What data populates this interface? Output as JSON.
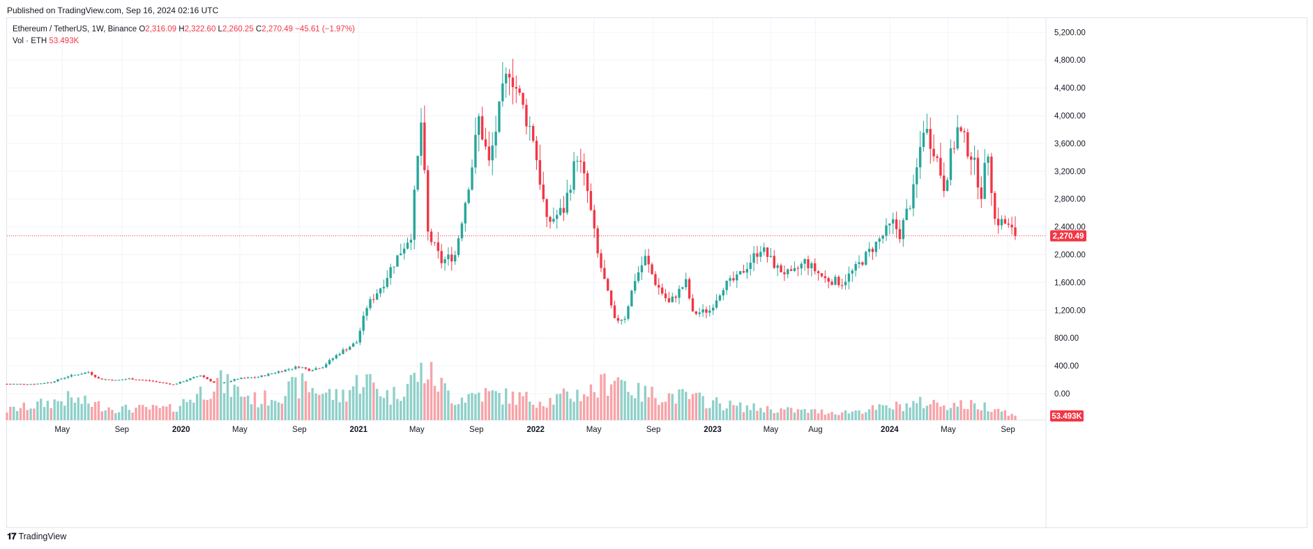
{
  "published": "Published on TradingView.com, Sep 16, 2024 02:16 UTC",
  "legend": {
    "symbol": "Ethereum / TetherUS, 1W, Binance",
    "o_label": "O",
    "o": "2,316.09",
    "h_label": "H",
    "h": "2,322.60",
    "l_label": "L",
    "l": "2,260.25",
    "c_label": "C",
    "c": "2,270.49",
    "change": "−45.61 (−1.97%)",
    "vol_label": "Vol · ETH",
    "vol": "53.493K"
  },
  "price_badge": "2,270.49",
  "volume_badge": "53.493K",
  "brand": "TradingView",
  "colors": {
    "up": "#26a69a",
    "down": "#f23645",
    "up_vol": "#8fd0c9",
    "down_vol": "#f7a3a8",
    "grid": "#f0f3fa",
    "last_line": "#f23645"
  },
  "chart_data": {
    "type": "candlestick",
    "symbol": "ETHUSDT",
    "interval": "1W",
    "y_ticks": [
      "5,200.00",
      "4,800.00",
      "4,400.00",
      "4,000.00",
      "3,600.00",
      "3,200.00",
      "2,800.00",
      "2,400.00",
      "2,000.00",
      "1,600.00",
      "1,200.00",
      "800.00",
      "400.00",
      "0.00"
    ],
    "y_tick_values": [
      5200,
      4800,
      4400,
      4000,
      3600,
      3200,
      2800,
      2400,
      2000,
      1600,
      1200,
      800,
      400,
      0
    ],
    "ylim": [
      0,
      5420
    ],
    "x_labels": [
      "May",
      "Sep",
      "2020",
      "May",
      "Sep",
      "2021",
      "May",
      "Sep",
      "2022",
      "May",
      "Sep",
      "2023",
      "May",
      "Aug",
      "2024",
      "May",
      "Sep"
    ],
    "x_label_dates": [
      "2019-05-01",
      "2019-09-01",
      "2020-01-01",
      "2020-05-01",
      "2020-09-01",
      "2021-01-01",
      "2021-05-01",
      "2021-09-01",
      "2022-01-01",
      "2022-05-01",
      "2022-09-01",
      "2023-01-01",
      "2023-05-01",
      "2023-08-01",
      "2024-01-01",
      "2024-05-01",
      "2024-09-01"
    ],
    "first_week": "2019-01-07",
    "last_week": "2024-09-16",
    "last_close": 2270.49,
    "close_anchors": [
      [
        "2019-01-07",
        140
      ],
      [
        "2019-03-04",
        137
      ],
      [
        "2019-04-08",
        165
      ],
      [
        "2019-05-13",
        250
      ],
      [
        "2019-06-24",
        310
      ],
      [
        "2019-07-15",
        215
      ],
      [
        "2019-08-19",
        190
      ],
      [
        "2019-09-16",
        215
      ],
      [
        "2019-10-28",
        185
      ],
      [
        "2019-12-16",
        130
      ],
      [
        "2020-02-10",
        265
      ],
      [
        "2020-03-16",
        130
      ],
      [
        "2020-04-27",
        215
      ],
      [
        "2020-06-08",
        240
      ],
      [
        "2020-07-27",
        330
      ],
      [
        "2020-08-31",
        390
      ],
      [
        "2020-09-21",
        340
      ],
      [
        "2020-10-19",
        390
      ],
      [
        "2020-11-23",
        590
      ],
      [
        "2020-12-28",
        740
      ],
      [
        "2021-01-18",
        1250
      ],
      [
        "2021-02-22",
        1600
      ],
      [
        "2021-03-08",
        1800
      ],
      [
        "2021-04-19",
        2300
      ],
      [
        "2021-05-10",
        3900
      ],
      [
        "2021-05-24",
        2300
      ],
      [
        "2021-06-21",
        1900
      ],
      [
        "2021-07-19",
        2000
      ],
      [
        "2021-08-23",
        3300
      ],
      [
        "2021-09-06",
        3950
      ],
      [
        "2021-09-27",
        3300
      ],
      [
        "2021-10-25",
        4300
      ],
      [
        "2021-11-08",
        4700
      ],
      [
        "2021-12-06",
        4100
      ],
      [
        "2021-12-27",
        3700
      ],
      [
        "2022-01-24",
        2450
      ],
      [
        "2022-02-28",
        2650
      ],
      [
        "2022-03-28",
        3450
      ],
      [
        "2022-04-18",
        2900
      ],
      [
        "2022-05-09",
        2000
      ],
      [
        "2022-06-13",
        1050
      ],
      [
        "2022-07-04",
        1100
      ],
      [
        "2022-07-25",
        1650
      ],
      [
        "2022-08-15",
        1950
      ],
      [
        "2022-09-05",
        1600
      ],
      [
        "2022-10-03",
        1300
      ],
      [
        "2022-11-07",
        1600
      ],
      [
        "2022-11-21",
        1150
      ],
      [
        "2022-12-26",
        1200
      ],
      [
        "2023-01-23",
        1550
      ],
      [
        "2023-02-20",
        1650
      ],
      [
        "2023-04-10",
        2100
      ],
      [
        "2023-05-15",
        1800
      ],
      [
        "2023-06-12",
        1700
      ],
      [
        "2023-07-10",
        1900
      ],
      [
        "2023-08-21",
        1650
      ],
      [
        "2023-09-25",
        1600
      ],
      [
        "2023-10-23",
        1800
      ],
      [
        "2023-11-27",
        2100
      ],
      [
        "2024-01-08",
        2450
      ],
      [
        "2024-01-22",
        2300
      ],
      [
        "2024-02-19",
        2900
      ],
      [
        "2024-03-11",
        3850
      ],
      [
        "2024-04-01",
        3550
      ],
      [
        "2024-04-22",
        3000
      ],
      [
        "2024-05-20",
        3800
      ],
      [
        "2024-06-17",
        3450
      ],
      [
        "2024-07-08",
        2900
      ],
      [
        "2024-07-22",
        3500
      ],
      [
        "2024-08-05",
        2500
      ],
      [
        "2024-08-26",
        2450
      ],
      [
        "2024-09-16",
        2270
      ]
    ],
    "volume_anchors": [
      [
        "2019-01-07",
        0.25
      ],
      [
        "2019-05-13",
        0.55
      ],
      [
        "2019-08-19",
        0.3
      ],
      [
        "2019-12-16",
        0.3
      ],
      [
        "2020-03-16",
        1.0
      ],
      [
        "2020-06-08",
        0.5
      ],
      [
        "2020-09-07",
        0.9
      ],
      [
        "2020-11-23",
        0.6
      ],
      [
        "2021-01-11",
        1.1
      ],
      [
        "2021-03-08",
        0.6
      ],
      [
        "2021-05-17",
        1.3
      ],
      [
        "2021-07-19",
        0.55
      ],
      [
        "2021-09-06",
        0.7
      ],
      [
        "2022-01-24",
        0.5
      ],
      [
        "2022-05-09",
        0.8
      ],
      [
        "2022-06-13",
        1.2
      ],
      [
        "2022-08-01",
        0.7
      ],
      [
        "2022-11-07",
        0.6
      ],
      [
        "2023-02-20",
        0.35
      ],
      [
        "2023-06-12",
        0.25
      ],
      [
        "2023-09-25",
        0.2
      ],
      [
        "2024-01-08",
        0.35
      ],
      [
        "2024-03-11",
        0.45
      ],
      [
        "2024-08-05",
        0.35
      ],
      [
        "2024-09-16",
        0.1
      ]
    ]
  }
}
